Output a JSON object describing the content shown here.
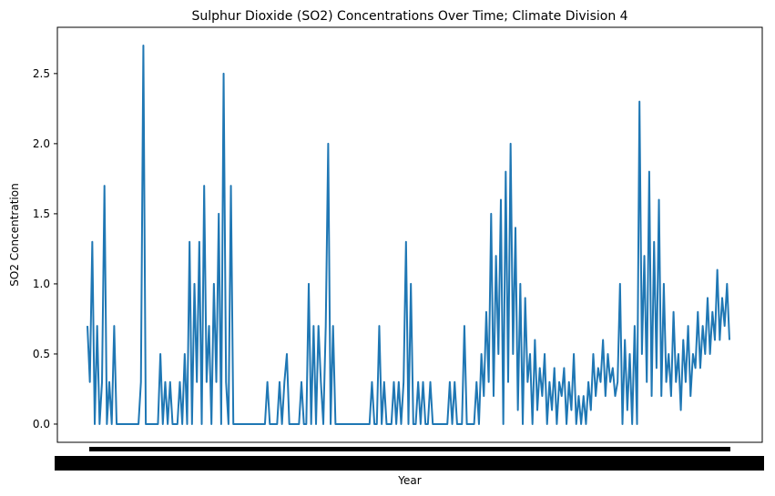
{
  "chart_data": {
    "type": "line",
    "title": "Sulphur Dioxide (SO2) Concentrations Over Time; Climate Division 4",
    "xlabel": "Year",
    "ylabel": "SO2 Concentration",
    "ylim": [
      -0.13,
      2.83
    ],
    "yticks": [
      0.0,
      0.5,
      1.0,
      1.5,
      2.0,
      2.5
    ],
    "ytick_labels": [
      "0.0",
      "0.5",
      "1.0",
      "1.5",
      "2.0",
      "2.5"
    ],
    "x_tick_labels_note": "dense overlapping year tick labels rendered as a solid band",
    "grid": false,
    "series": [
      {
        "color": "#1f77b4",
        "values": [
          0.7,
          0.3,
          1.3,
          0.0,
          0.7,
          0.0,
          0.3,
          1.7,
          0.0,
          0.3,
          0.0,
          0.7,
          0.0,
          0.0,
          0.0,
          0.0,
          0.0,
          0.0,
          0.0,
          0.0,
          0.0,
          0.0,
          0.3,
          2.7,
          0.0,
          0.0,
          0.0,
          0.0,
          0.0,
          0.0,
          0.5,
          0.0,
          0.3,
          0.0,
          0.3,
          0.0,
          0.0,
          0.0,
          0.3,
          0.0,
          0.5,
          0.0,
          1.3,
          0.0,
          1.0,
          0.3,
          1.3,
          0.0,
          1.7,
          0.3,
          0.7,
          0.0,
          1.0,
          0.3,
          1.5,
          0.0,
          2.5,
          0.3,
          0.0,
          1.7,
          0.0,
          0.0,
          0.0,
          0.0,
          0.0,
          0.0,
          0.0,
          0.0,
          0.0,
          0.0,
          0.0,
          0.0,
          0.0,
          0.0,
          0.3,
          0.0,
          0.0,
          0.0,
          0.0,
          0.3,
          0.0,
          0.3,
          0.5,
          0.0,
          0.0,
          0.0,
          0.0,
          0.0,
          0.3,
          0.0,
          0.0,
          1.0,
          0.0,
          0.7,
          0.0,
          0.7,
          0.3,
          0.0,
          0.7,
          2.0,
          0.0,
          0.7,
          0.0,
          0.0,
          0.0,
          0.0,
          0.0,
          0.0,
          0.0,
          0.0,
          0.0,
          0.0,
          0.0,
          0.0,
          0.0,
          0.0,
          0.0,
          0.3,
          0.0,
          0.0,
          0.7,
          0.0,
          0.3,
          0.0,
          0.0,
          0.0,
          0.3,
          0.0,
          0.3,
          0.0,
          0.3,
          1.3,
          0.0,
          1.0,
          0.0,
          0.0,
          0.3,
          0.0,
          0.3,
          0.0,
          0.0,
          0.3,
          0.0,
          0.0,
          0.0,
          0.0,
          0.0,
          0.0,
          0.0,
          0.3,
          0.0,
          0.3,
          0.0,
          0.0,
          0.0,
          0.7,
          0.0,
          0.0,
          0.0,
          0.0,
          0.3,
          0.0,
          0.5,
          0.2,
          0.8,
          0.3,
          1.5,
          0.2,
          1.2,
          0.5,
          1.6,
          0.0,
          1.8,
          0.3,
          2.0,
          0.5,
          1.4,
          0.1,
          1.0,
          0.0,
          0.9,
          0.3,
          0.5,
          0.0,
          0.6,
          0.1,
          0.4,
          0.2,
          0.5,
          0.0,
          0.3,
          0.1,
          0.4,
          0.0,
          0.3,
          0.2,
          0.4,
          0.0,
          0.3,
          0.1,
          0.5,
          0.0,
          0.2,
          0.0,
          0.2,
          0.0,
          0.3,
          0.1,
          0.5,
          0.2,
          0.4,
          0.3,
          0.6,
          0.2,
          0.5,
          0.3,
          0.4,
          0.2,
          0.3,
          1.0,
          0.0,
          0.6,
          0.1,
          0.5,
          0.0,
          0.7,
          0.0,
          2.3,
          0.5,
          1.2,
          0.3,
          1.8,
          0.2,
          1.3,
          0.4,
          1.6,
          0.2,
          1.0,
          0.3,
          0.5,
          0.2,
          0.8,
          0.3,
          0.5,
          0.1,
          0.6,
          0.3,
          0.7,
          0.2,
          0.5,
          0.4,
          0.8,
          0.4,
          0.7,
          0.5,
          0.9,
          0.5,
          0.8,
          0.6,
          1.1,
          0.6,
          0.9,
          0.7,
          1.0,
          0.6
        ]
      }
    ]
  }
}
